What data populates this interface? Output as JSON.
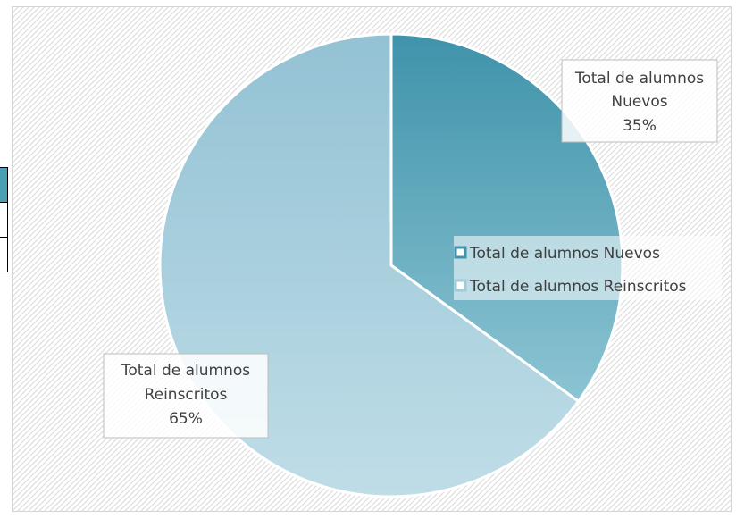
{
  "chart_data": {
    "type": "pie",
    "title": "",
    "slices": [
      {
        "label": "Total de alumnos Nuevos",
        "label_lines": [
          "Total de alumnos",
          "Nuevos"
        ],
        "value": 35,
        "value_text": "35%",
        "color": "#4a9db3"
      },
      {
        "label": "Total de alumnos Reinscritos",
        "label_lines": [
          "Total de alumnos",
          "Reinscritos"
        ],
        "value": 65,
        "value_text": "65%",
        "color": "#a9cfdc"
      }
    ],
    "legend": {
      "placement": "right-inside",
      "entries": [
        "Total de alumnos Nuevos",
        "Total de alumnos Reinscritos"
      ]
    },
    "background": "diagonal-hatch",
    "grid": false
  }
}
